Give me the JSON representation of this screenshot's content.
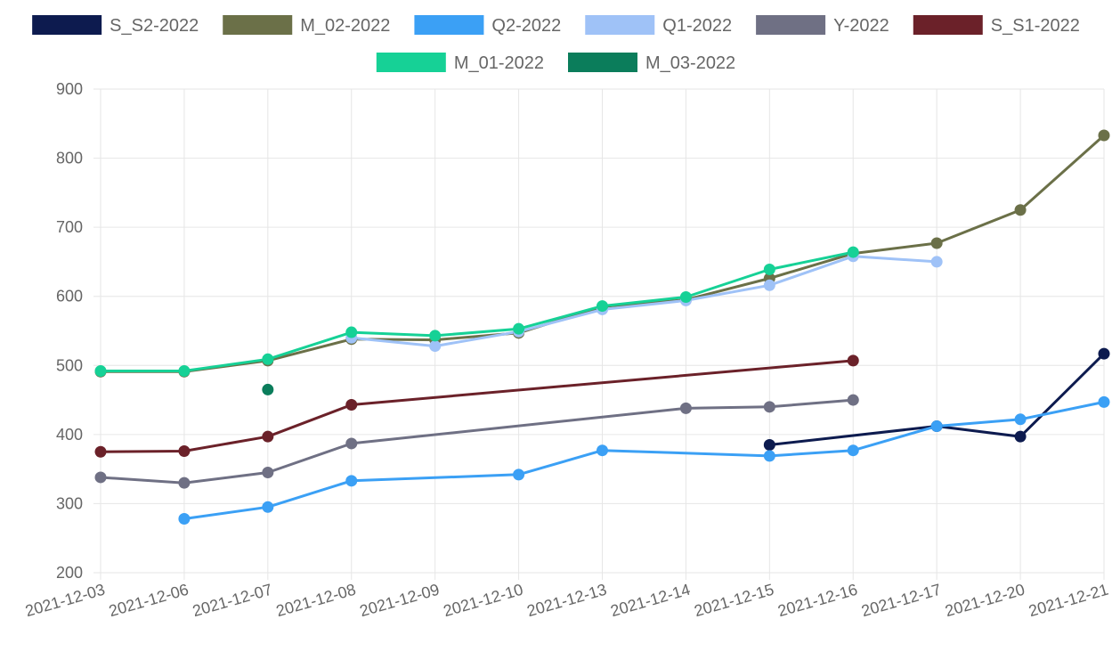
{
  "chart_data": {
    "type": "line",
    "categories": [
      "2021-12-03",
      "2021-12-06",
      "2021-12-07",
      "2021-12-08",
      "2021-12-09",
      "2021-12-10",
      "2021-12-13",
      "2021-12-14",
      "2021-12-15",
      "2021-12-16",
      "2021-12-17",
      "2021-12-20",
      "2021-12-21"
    ],
    "ylim": [
      200,
      900
    ],
    "yticks": [
      200,
      300,
      400,
      500,
      600,
      700,
      800,
      900
    ],
    "grid": true,
    "legend_position": "top",
    "series": [
      {
        "name": "S_S2-2022",
        "color": "#0d1b4f",
        "values": [
          null,
          null,
          null,
          null,
          null,
          null,
          null,
          null,
          385,
          null,
          412,
          397,
          517
        ]
      },
      {
        "name": "M_02-2022",
        "color": "#6b7048",
        "values": [
          491,
          491,
          507,
          538,
          537,
          547,
          585,
          595,
          626,
          662,
          677,
          725,
          833
        ]
      },
      {
        "name": "Q2-2022",
        "color": "#3ba0f5",
        "values": [
          null,
          278,
          295,
          333,
          null,
          342,
          377,
          null,
          369,
          377,
          412,
          422,
          447
        ]
      },
      {
        "name": "Q1-2022",
        "color": "#9fc2f7",
        "values": [
          null,
          null,
          null,
          540,
          528,
          549,
          581,
          594,
          616,
          658,
          650,
          null,
          null
        ]
      },
      {
        "name": "Y-2022",
        "color": "#6f7084",
        "values": [
          338,
          330,
          345,
          387,
          null,
          null,
          null,
          438,
          440,
          450,
          null,
          null,
          null
        ]
      },
      {
        "name": "S_S1-2022",
        "color": "#6b2129",
        "values": [
          375,
          376,
          397,
          443,
          null,
          null,
          null,
          null,
          null,
          507,
          null,
          null,
          null
        ]
      },
      {
        "name": "M_01-2022",
        "color": "#16d196",
        "values": [
          492,
          492,
          509,
          548,
          543,
          553,
          586,
          599,
          639,
          664,
          null,
          null,
          null
        ]
      },
      {
        "name": "M_03-2022",
        "color": "#0b7d5b",
        "values": [
          null,
          null,
          465,
          null,
          null,
          null,
          null,
          null,
          null,
          null,
          null,
          null,
          null
        ]
      }
    ]
  }
}
